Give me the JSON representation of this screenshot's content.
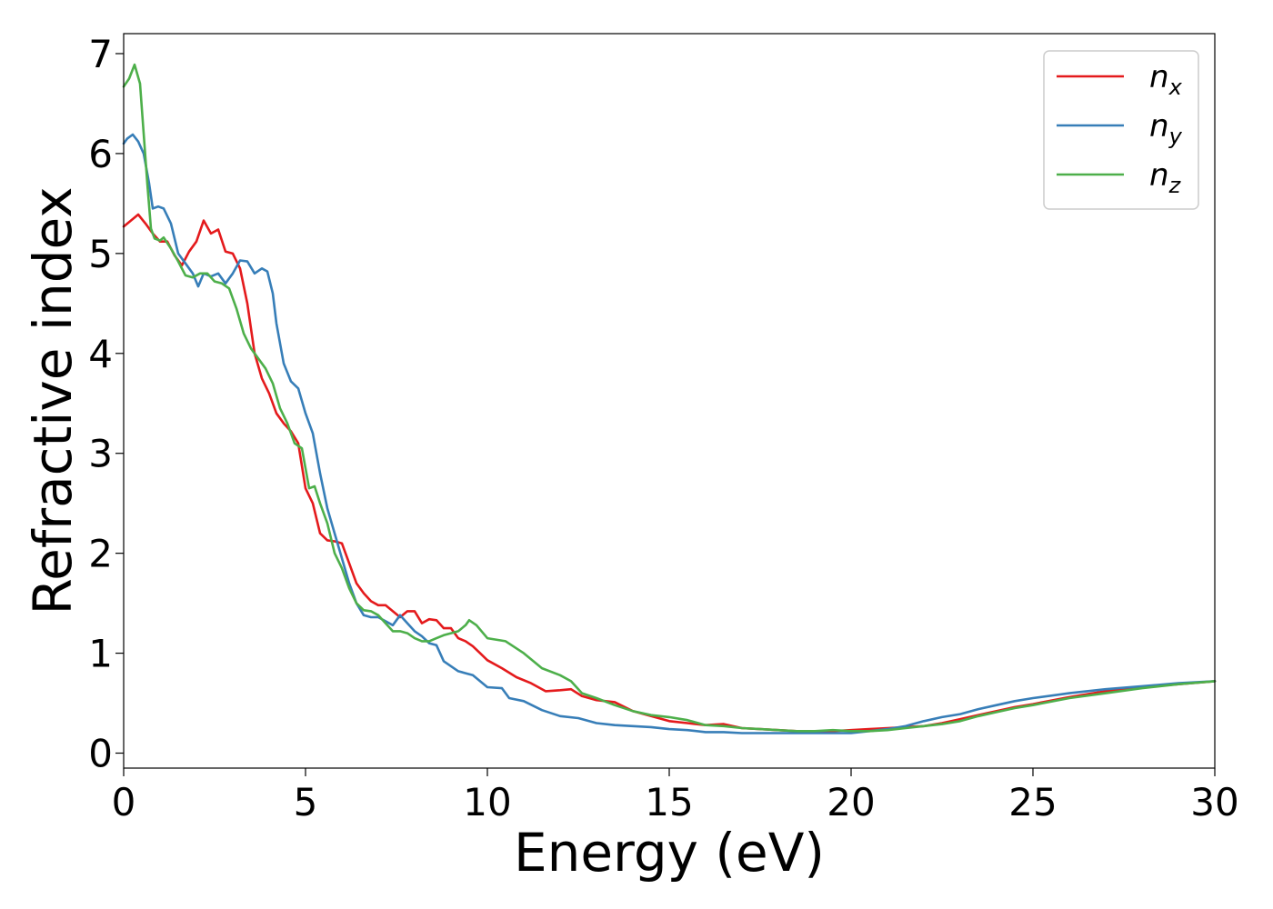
{
  "chart_data": {
    "type": "line",
    "xlabel": "Energy (eV)",
    "ylabel": "Refractive index",
    "xlim": [
      0,
      30
    ],
    "ylim": [
      -0.15,
      7.2
    ],
    "xticks": [
      0,
      5,
      10,
      15,
      20,
      25,
      30
    ],
    "yticks": [
      0,
      1,
      2,
      3,
      4,
      5,
      6,
      7
    ],
    "grid": false,
    "legend_position": "top-right",
    "series": [
      {
        "name": "n_x",
        "label_base": "n",
        "label_sub": "x",
        "color": "#e41a1c",
        "points": [
          [
            0,
            5.27
          ],
          [
            0.2,
            5.33
          ],
          [
            0.4,
            5.39
          ],
          [
            0.6,
            5.3
          ],
          [
            0.8,
            5.2
          ],
          [
            1.0,
            5.12
          ],
          [
            1.2,
            5.12
          ],
          [
            1.4,
            4.98
          ],
          [
            1.6,
            4.88
          ],
          [
            1.8,
            5.02
          ],
          [
            2.0,
            5.12
          ],
          [
            2.2,
            5.33
          ],
          [
            2.4,
            5.2
          ],
          [
            2.6,
            5.24
          ],
          [
            2.8,
            5.02
          ],
          [
            3.0,
            5.0
          ],
          [
            3.2,
            4.85
          ],
          [
            3.4,
            4.5
          ],
          [
            3.6,
            4.0
          ],
          [
            3.8,
            3.75
          ],
          [
            4.0,
            3.6
          ],
          [
            4.2,
            3.4
          ],
          [
            4.4,
            3.3
          ],
          [
            4.6,
            3.22
          ],
          [
            4.8,
            3.1
          ],
          [
            5.0,
            2.65
          ],
          [
            5.2,
            2.5
          ],
          [
            5.4,
            2.2
          ],
          [
            5.6,
            2.13
          ],
          [
            5.8,
            2.12
          ],
          [
            6.0,
            2.1
          ],
          [
            6.2,
            1.9
          ],
          [
            6.4,
            1.7
          ],
          [
            6.6,
            1.6
          ],
          [
            6.8,
            1.52
          ],
          [
            7.0,
            1.48
          ],
          [
            7.2,
            1.48
          ],
          [
            7.4,
            1.42
          ],
          [
            7.6,
            1.36
          ],
          [
            7.8,
            1.42
          ],
          [
            8.0,
            1.42
          ],
          [
            8.2,
            1.3
          ],
          [
            8.4,
            1.34
          ],
          [
            8.6,
            1.33
          ],
          [
            8.8,
            1.25
          ],
          [
            9.0,
            1.25
          ],
          [
            9.2,
            1.15
          ],
          [
            9.4,
            1.12
          ],
          [
            9.6,
            1.07
          ],
          [
            9.8,
            1.0
          ],
          [
            10.0,
            0.93
          ],
          [
            10.4,
            0.85
          ],
          [
            10.8,
            0.76
          ],
          [
            11.2,
            0.7
          ],
          [
            11.6,
            0.62
          ],
          [
            12.0,
            0.63
          ],
          [
            12.3,
            0.64
          ],
          [
            12.6,
            0.57
          ],
          [
            13.0,
            0.53
          ],
          [
            13.5,
            0.51
          ],
          [
            14.0,
            0.42
          ],
          [
            14.5,
            0.37
          ],
          [
            15.0,
            0.32
          ],
          [
            15.5,
            0.3
          ],
          [
            16.0,
            0.28
          ],
          [
            16.5,
            0.29
          ],
          [
            17.0,
            0.25
          ],
          [
            17.5,
            0.24
          ],
          [
            18.0,
            0.23
          ],
          [
            18.5,
            0.22
          ],
          [
            19.0,
            0.22
          ],
          [
            19.5,
            0.22
          ],
          [
            20.0,
            0.23
          ],
          [
            20.5,
            0.24
          ],
          [
            21.0,
            0.25
          ],
          [
            21.5,
            0.26
          ],
          [
            22.0,
            0.27
          ],
          [
            22.5,
            0.3
          ],
          [
            23.0,
            0.34
          ],
          [
            23.5,
            0.38
          ],
          [
            24.0,
            0.42
          ],
          [
            24.5,
            0.46
          ],
          [
            25.0,
            0.49
          ],
          [
            26.0,
            0.56
          ],
          [
            27.0,
            0.62
          ],
          [
            28.0,
            0.66
          ],
          [
            29.0,
            0.69
          ],
          [
            30.0,
            0.72
          ]
        ]
      },
      {
        "name": "n_y",
        "label_base": "n",
        "label_sub": "y",
        "color": "#377eb8",
        "points": [
          [
            0,
            6.1
          ],
          [
            0.1,
            6.15
          ],
          [
            0.25,
            6.19
          ],
          [
            0.4,
            6.12
          ],
          [
            0.55,
            6.0
          ],
          [
            0.7,
            5.7
          ],
          [
            0.8,
            5.45
          ],
          [
            0.95,
            5.47
          ],
          [
            1.1,
            5.45
          ],
          [
            1.3,
            5.3
          ],
          [
            1.5,
            5.0
          ],
          [
            1.7,
            4.9
          ],
          [
            1.9,
            4.8
          ],
          [
            2.05,
            4.67
          ],
          [
            2.2,
            4.8
          ],
          [
            2.4,
            4.77
          ],
          [
            2.6,
            4.8
          ],
          [
            2.8,
            4.7
          ],
          [
            3.0,
            4.8
          ],
          [
            3.2,
            4.93
          ],
          [
            3.4,
            4.92
          ],
          [
            3.6,
            4.8
          ],
          [
            3.8,
            4.85
          ],
          [
            3.95,
            4.82
          ],
          [
            4.1,
            4.6
          ],
          [
            4.2,
            4.3
          ],
          [
            4.4,
            3.9
          ],
          [
            4.6,
            3.72
          ],
          [
            4.8,
            3.65
          ],
          [
            5.0,
            3.4
          ],
          [
            5.2,
            3.2
          ],
          [
            5.4,
            2.8
          ],
          [
            5.6,
            2.45
          ],
          [
            5.8,
            2.2
          ],
          [
            6.0,
            1.95
          ],
          [
            6.2,
            1.7
          ],
          [
            6.4,
            1.5
          ],
          [
            6.6,
            1.38
          ],
          [
            6.8,
            1.36
          ],
          [
            7.0,
            1.36
          ],
          [
            7.2,
            1.32
          ],
          [
            7.4,
            1.28
          ],
          [
            7.6,
            1.38
          ],
          [
            7.8,
            1.3
          ],
          [
            8.0,
            1.22
          ],
          [
            8.2,
            1.17
          ],
          [
            8.4,
            1.1
          ],
          [
            8.6,
            1.08
          ],
          [
            8.8,
            0.92
          ],
          [
            9.0,
            0.87
          ],
          [
            9.2,
            0.82
          ],
          [
            9.4,
            0.8
          ],
          [
            9.6,
            0.78
          ],
          [
            9.8,
            0.72
          ],
          [
            10.0,
            0.66
          ],
          [
            10.4,
            0.65
          ],
          [
            10.6,
            0.55
          ],
          [
            11.0,
            0.52
          ],
          [
            11.5,
            0.43
          ],
          [
            12.0,
            0.37
          ],
          [
            12.5,
            0.35
          ],
          [
            13.0,
            0.3
          ],
          [
            13.5,
            0.28
          ],
          [
            14.0,
            0.27
          ],
          [
            14.5,
            0.26
          ],
          [
            15.0,
            0.24
          ],
          [
            15.5,
            0.23
          ],
          [
            16.0,
            0.21
          ],
          [
            16.5,
            0.21
          ],
          [
            17.0,
            0.2
          ],
          [
            17.5,
            0.2
          ],
          [
            18.0,
            0.2
          ],
          [
            18.5,
            0.2
          ],
          [
            19.0,
            0.2
          ],
          [
            19.5,
            0.2
          ],
          [
            20.0,
            0.2
          ],
          [
            20.5,
            0.22
          ],
          [
            21.0,
            0.24
          ],
          [
            21.5,
            0.27
          ],
          [
            22.0,
            0.32
          ],
          [
            22.5,
            0.36
          ],
          [
            23.0,
            0.39
          ],
          [
            23.5,
            0.44
          ],
          [
            24.0,
            0.48
          ],
          [
            24.5,
            0.52
          ],
          [
            25.0,
            0.55
          ],
          [
            26.0,
            0.6
          ],
          [
            27.0,
            0.64
          ],
          [
            28.0,
            0.67
          ],
          [
            29.0,
            0.7
          ],
          [
            30.0,
            0.72
          ]
        ]
      },
      {
        "name": "n_z",
        "label_base": "n",
        "label_sub": "z",
        "color": "#4daf4a",
        "points": [
          [
            0,
            6.67
          ],
          [
            0.15,
            6.75
          ],
          [
            0.3,
            6.89
          ],
          [
            0.45,
            6.7
          ],
          [
            0.55,
            6.2
          ],
          [
            0.65,
            5.7
          ],
          [
            0.75,
            5.25
          ],
          [
            0.85,
            5.15
          ],
          [
            1.0,
            5.13
          ],
          [
            1.1,
            5.16
          ],
          [
            1.3,
            5.05
          ],
          [
            1.5,
            4.92
          ],
          [
            1.7,
            4.78
          ],
          [
            1.9,
            4.76
          ],
          [
            2.1,
            4.8
          ],
          [
            2.3,
            4.8
          ],
          [
            2.5,
            4.72
          ],
          [
            2.7,
            4.7
          ],
          [
            2.9,
            4.65
          ],
          [
            3.1,
            4.45
          ],
          [
            3.3,
            4.2
          ],
          [
            3.5,
            4.05
          ],
          [
            3.7,
            3.95
          ],
          [
            3.9,
            3.85
          ],
          [
            4.1,
            3.7
          ],
          [
            4.3,
            3.45
          ],
          [
            4.5,
            3.3
          ],
          [
            4.7,
            3.1
          ],
          [
            4.9,
            3.05
          ],
          [
            5.0,
            2.85
          ],
          [
            5.1,
            2.65
          ],
          [
            5.25,
            2.67
          ],
          [
            5.4,
            2.5
          ],
          [
            5.6,
            2.3
          ],
          [
            5.8,
            2.0
          ],
          [
            6.0,
            1.85
          ],
          [
            6.2,
            1.65
          ],
          [
            6.4,
            1.5
          ],
          [
            6.6,
            1.43
          ],
          [
            6.8,
            1.42
          ],
          [
            7.0,
            1.38
          ],
          [
            7.2,
            1.3
          ],
          [
            7.4,
            1.22
          ],
          [
            7.6,
            1.22
          ],
          [
            7.8,
            1.2
          ],
          [
            8.0,
            1.15
          ],
          [
            8.2,
            1.12
          ],
          [
            8.4,
            1.12
          ],
          [
            8.6,
            1.15
          ],
          [
            8.8,
            1.18
          ],
          [
            9.0,
            1.2
          ],
          [
            9.2,
            1.22
          ],
          [
            9.4,
            1.28
          ],
          [
            9.5,
            1.33
          ],
          [
            9.7,
            1.28
          ],
          [
            10.0,
            1.15
          ],
          [
            10.5,
            1.12
          ],
          [
            11.0,
            1.0
          ],
          [
            11.5,
            0.85
          ],
          [
            12.0,
            0.78
          ],
          [
            12.3,
            0.72
          ],
          [
            12.6,
            0.6
          ],
          [
            13.0,
            0.55
          ],
          [
            13.5,
            0.48
          ],
          [
            14.0,
            0.42
          ],
          [
            14.5,
            0.38
          ],
          [
            15.0,
            0.36
          ],
          [
            15.5,
            0.33
          ],
          [
            16.0,
            0.28
          ],
          [
            16.5,
            0.27
          ],
          [
            17.0,
            0.25
          ],
          [
            17.5,
            0.24
          ],
          [
            18.0,
            0.23
          ],
          [
            18.5,
            0.22
          ],
          [
            19.0,
            0.22
          ],
          [
            19.5,
            0.23
          ],
          [
            20.0,
            0.22
          ],
          [
            20.5,
            0.22
          ],
          [
            21.0,
            0.23
          ],
          [
            21.5,
            0.25
          ],
          [
            22.0,
            0.27
          ],
          [
            22.5,
            0.29
          ],
          [
            23.0,
            0.32
          ],
          [
            23.5,
            0.37
          ],
          [
            24.0,
            0.41
          ],
          [
            24.5,
            0.45
          ],
          [
            25.0,
            0.48
          ],
          [
            26.0,
            0.55
          ],
          [
            27.0,
            0.6
          ],
          [
            28.0,
            0.65
          ],
          [
            29.0,
            0.69
          ],
          [
            30.0,
            0.72
          ]
        ]
      }
    ]
  }
}
